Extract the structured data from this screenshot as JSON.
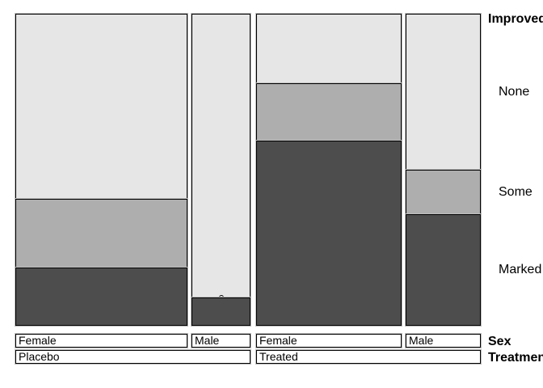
{
  "figure": {
    "background": "#ffffff",
    "cell_border_color": "#000000",
    "halo_color": "#bdbdbd"
  },
  "labels": {
    "improved": "Improved",
    "sex": "Sex",
    "treatment": "Treatment"
  },
  "chart_data": {
    "type": "mosaic",
    "subtype": "doubledecker",
    "dependent_variable": "Improved",
    "dependent_levels": [
      "None",
      "Some",
      "Marked"
    ],
    "explanatory_variables": [
      "Treatment",
      "Sex"
    ],
    "groups": [
      {
        "treatment": "Placebo",
        "columns": [
          {
            "sex": "Female",
            "counts": [
              19,
              7,
              6
            ]
          },
          {
            "sex": "Male",
            "counts": [
              10,
              0,
              1
            ]
          }
        ]
      },
      {
        "treatment": "Treated",
        "columns": [
          {
            "sex": "Female",
            "counts": [
              6,
              5,
              16
            ]
          },
          {
            "sex": "Male",
            "counts": [
              7,
              2,
              5
            ]
          }
        ]
      }
    ],
    "column_totals": [
      32,
      11,
      27,
      14
    ],
    "grand_total": 84,
    "colors": {
      "None": "#E6E6E6",
      "Some": "#AEAEAE",
      "Marked": "#4D4D4D"
    },
    "zero_cell_marker": "small-circle",
    "zero_cells": [
      {
        "treatment": "Placebo",
        "sex": "Male",
        "level": "Some"
      }
    ],
    "legend_position": "right-margin labels aligned to last column cells",
    "axis_label_rows": [
      "Sex",
      "Treatment"
    ]
  }
}
